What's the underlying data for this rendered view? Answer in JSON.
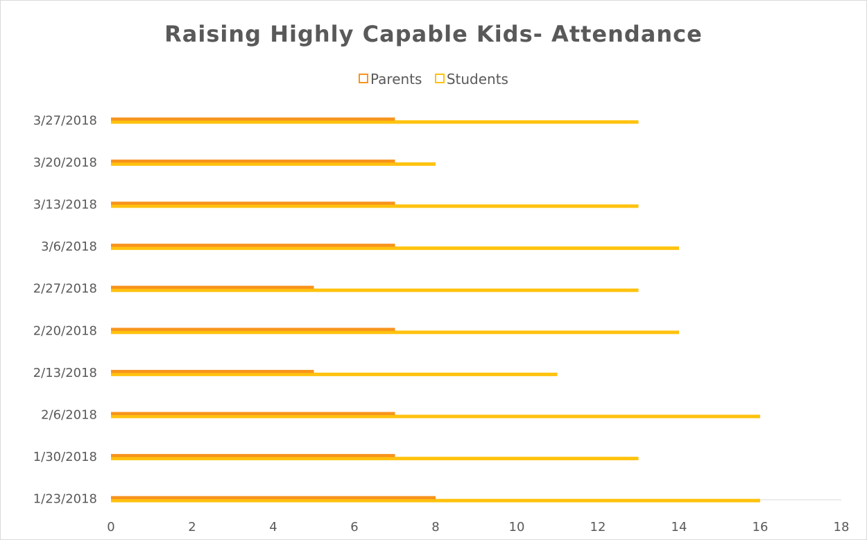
{
  "chart_data": {
    "type": "bar",
    "orientation": "horizontal",
    "title": "Raising Highly Capable Kids- Attendance",
    "xlabel": "",
    "ylabel": "",
    "xlim": [
      0,
      18
    ],
    "xticks": [
      0,
      2,
      4,
      6,
      8,
      10,
      12,
      14,
      16,
      18
    ],
    "grid": false,
    "legend_position": "top",
    "categories": [
      "1/23/2018",
      "1/30/2018",
      "2/6/2018",
      "2/13/2018",
      "2/20/2018",
      "2/27/2018",
      "3/6/2018",
      "3/13/2018",
      "3/20/2018",
      "3/27/2018"
    ],
    "series": [
      {
        "name": "Parents",
        "color": "#F7941D",
        "values": [
          8,
          7,
          7,
          5,
          7,
          5,
          7,
          7,
          7,
          7
        ]
      },
      {
        "name": "Students",
        "color": "#FFC20E",
        "values": [
          16,
          13,
          16,
          11,
          14,
          13,
          14,
          13,
          8,
          13
        ]
      }
    ]
  }
}
